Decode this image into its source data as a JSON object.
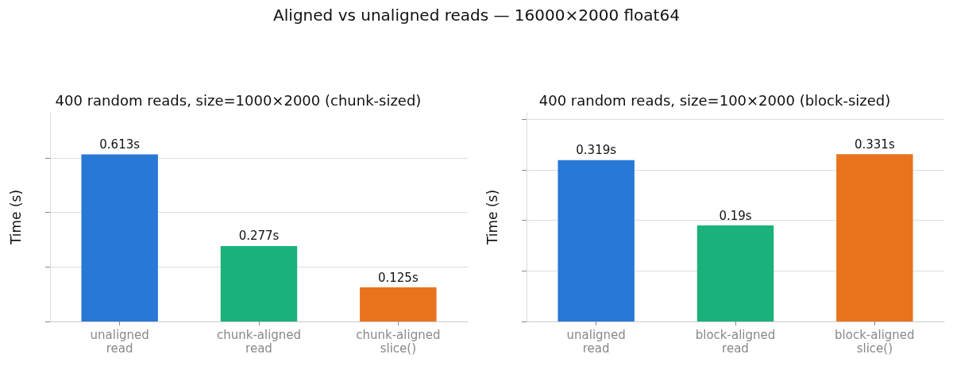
{
  "chart_data": [
    {
      "type": "bar",
      "title": "400 random reads, size=1000×2000 (chunk-sized)",
      "ylabel": "Time (s)",
      "annotations": [
        "Aligned vs unaligned reads — 16000×2000 float64"
      ],
      "categories": [
        "unaligned\nread",
        "chunk-aligned\nread",
        "chunk-aligned\nslice()"
      ],
      "values": [
        0.613,
        0.277,
        0.125
      ],
      "colors": [
        "#2878d6",
        "#1bb17a",
        "#e8731c"
      ],
      "value_labels": [
        "0.613s",
        "0.277s",
        "0.125s"
      ],
      "ylim": [
        0,
        0.766
      ],
      "yticks": [
        {
          "value": 0,
          "label": null
        },
        {
          "value": 0.2,
          "label": null
        },
        {
          "value": 0.4,
          "label": null
        },
        {
          "value": 0.6,
          "label": null
        }
      ],
      "grid": "y",
      "tick_labels": "x"
    },
    {
      "type": "bar",
      "title": "400 random reads, size=100×2000 (block-sized)",
      "ylabel": "Time (s)",
      "categories": [
        "unaligned\nread",
        "block-aligned\nread",
        "block-aligned\nslice()"
      ],
      "values": [
        0.319,
        0.19,
        0.331
      ],
      "colors": [
        "#2878d6",
        "#1bb17a",
        "#e8731c"
      ],
      "value_labels": [
        "0.319s",
        "0.19s",
        "0.331s"
      ],
      "ylim": [
        0,
        0.413
      ],
      "yticks": [
        {
          "value": 0,
          "label": null
        },
        {
          "value": 0.1,
          "label": null
        },
        {
          "value": 0.2,
          "label": null
        },
        {
          "value": 0.3,
          "label": null
        },
        {
          "value": 0.4,
          "label": null
        }
      ],
      "grid": "y",
      "tick_labels": "x"
    }
  ]
}
